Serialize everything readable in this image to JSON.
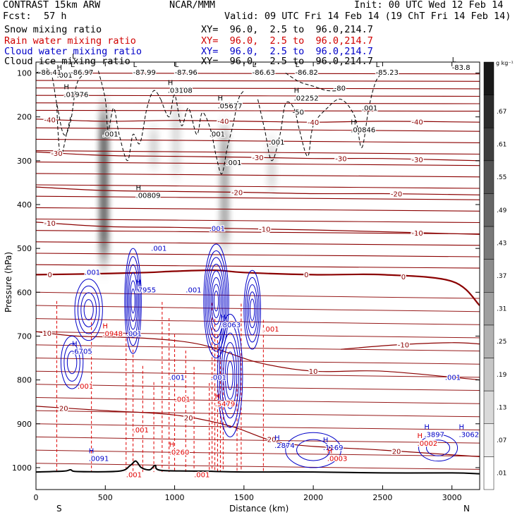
{
  "header": {
    "model": "CONTRAST 15km ARW",
    "org": "NCAR/MMM",
    "init": "Init: 00 UTC Wed 12 Feb 14",
    "fcst_label": "Fcst:",
    "fcst_value": "57 h",
    "valid": "Valid: 09 UTC Fri 14 Feb 14 (19 ChT Fri 14 Feb 14)"
  },
  "legend": [
    {
      "name": "Snow mixing ratio",
      "xy": "XY=  96.0,  2.5 to  96.0,214.7",
      "color": "#000000"
    },
    {
      "name": "Rain water mixing ratio",
      "xy": "XY=  96.0,  2.5 to  96.0,214.7",
      "color": "#d00000"
    },
    {
      "name": "Cloud water mixing ratio",
      "xy": "XY=  96.0,  2.5 to  96.0,214.7",
      "color": "#0000c8"
    },
    {
      "name": "Cloud ice mixing ratio",
      "xy": "XY=  96.0,  2.5 to  96.0,214.7",
      "color": "#000000"
    }
  ],
  "colors": {
    "temperature": "#8b0000",
    "cloud_water": "#0000c8",
    "rain": "#e00000",
    "ice": "#000000",
    "terrain": "#000000"
  },
  "chart_data": {
    "type": "heatmap",
    "xlabel": "Distance (km)",
    "ylabel": "Pressure (hPa)",
    "xlim": [
      0,
      3200
    ],
    "ylim": [
      1050,
      75
    ],
    "x_ticks": [
      0,
      500,
      1000,
      1500,
      2000,
      2500,
      3000
    ],
    "y_ticks": [
      100,
      200,
      300,
      400,
      500,
      600,
      700,
      800,
      900,
      1000
    ],
    "x_end_labels": {
      "left": "S",
      "right": "N"
    },
    "colorbar": {
      "unit": "g kg⁻¹",
      "ticks": [
        ".01",
        ".07",
        ".13",
        ".19",
        ".25",
        ".31",
        ".37",
        ".43",
        ".49",
        ".55",
        ".61",
        ".67"
      ]
    },
    "temperature_isotherms": [
      {
        "label": "-40",
        "x": [
          0,
          500,
          1000,
          1500,
          2000,
          2500,
          3200
        ],
        "p": [
          205,
          210,
          208,
          210,
          212,
          210,
          212
        ],
        "label_x": [
          100,
          1350,
          2000,
          2750
        ]
      },
      {
        "label": "-30",
        "x": [
          0,
          500,
          1000,
          1500,
          2000,
          2500,
          3200
        ],
        "p": [
          280,
          288,
          290,
          292,
          295,
          295,
          300
        ],
        "label_x": [
          150,
          1600,
          2200,
          2750
        ]
      },
      {
        "label": "-20",
        "x": [
          0,
          500,
          1000,
          1500,
          2000,
          2500,
          3200
        ],
        "p": [
          360,
          368,
          370,
          372,
          375,
          375,
          378
        ],
        "label_x": [
          1450,
          2600
        ]
      },
      {
        "label": "-10",
        "x": [
          0,
          500,
          1000,
          1500,
          2000,
          2500,
          3200
        ],
        "p": [
          440,
          450,
          452,
          455,
          458,
          462,
          468
        ],
        "label_x": [
          100,
          1650,
          2750
        ]
      },
      {
        "label": "0",
        "x": [
          0,
          400,
          800,
          1000,
          1300,
          1500,
          2000,
          2500,
          3000,
          3200
        ],
        "p": [
          560,
          558,
          555,
          552,
          550,
          555,
          560,
          560,
          575,
          630
        ],
        "label_x": [
          100,
          1950,
          2650
        ]
      },
      {
        "label": "-10",
        "x": [
          2200,
          2600,
          3000,
          3200
        ],
        "p": [
          730,
          720,
          715,
          718
        ],
        "label_x": [
          2650
        ]
      },
      {
        "label": "10",
        "x": [
          0,
          300,
          800,
          1200,
          1600,
          2000,
          2500,
          3200
        ],
        "p": [
          690,
          700,
          705,
          720,
          760,
          780,
          780,
          800
        ],
        "label_x": [
          80,
          2000
        ]
      },
      {
        "label": "20",
        "x": [
          0,
          500,
          1000,
          1400,
          1800,
          2500,
          3200
        ],
        "p": [
          860,
          870,
          880,
          905,
          945,
          960,
          975
        ],
        "label_x": [
          200,
          1100,
          1700,
          2600
        ]
      }
    ],
    "cloud_ice_labels": [
      {
        "kind": "L",
        "value": "",
        "x": 260,
        "p": 85
      },
      {
        "kind": "H",
        "value": ".001",
        "x": 150,
        "p": 110
      },
      {
        "kind": "L",
        "value": "-86.97",
        "x": 250,
        "p": 104
      },
      {
        "kind": "L",
        "value": "-87.99",
        "x": 700,
        "p": 104
      },
      {
        "kind": "L",
        "value": "-87.96",
        "x": 1000,
        "p": 104
      },
      {
        "kind": "L",
        "value": "-86.63",
        "x": 1560,
        "p": 104
      },
      {
        "kind": "L",
        "value": "-86.82",
        "x": 1870,
        "p": 104
      },
      {
        "kind": "L",
        "value": "-85.23",
        "x": 2450,
        "p": 104
      },
      {
        "kind": "L",
        "value": "-83.8",
        "x": 3000,
        "p": 93
      },
      {
        "kind": "",
        "value": "-86.41",
        "x": 20,
        "p": 104
      },
      {
        "kind": "H",
        "value": ".01976",
        "x": 200,
        "p": 155
      },
      {
        "kind": "H",
        "value": ".03108",
        "x": 950,
        "p": 145
      },
      {
        "kind": "H",
        "value": ".05677",
        "x": 1310,
        "p": 180
      },
      {
        "kind": "H",
        "value": ".02252",
        "x": 1860,
        "p": 163
      },
      {
        "kind": "H",
        "value": ".00846",
        "x": 2270,
        "p": 235
      },
      {
        "kind": "H",
        "value": ".00809",
        "x": 720,
        "p": 385
      },
      {
        "kind": "",
        "value": ".001",
        "x": 480,
        "p": 245
      },
      {
        "kind": "",
        "value": ".001",
        "x": 1250,
        "p": 245
      },
      {
        "kind": "",
        "value": ".001",
        "x": 1370,
        "p": 310
      },
      {
        "kind": "",
        "value": ".001",
        "x": 2350,
        "p": 185
      },
      {
        "kind": "",
        "value": ".001",
        "x": 1680,
        "p": 263
      },
      {
        "kind": "",
        "value": "-50",
        "x": 1850,
        "p": 195
      },
      {
        "kind": "",
        "value": "-80",
        "x": 2150,
        "p": 140
      }
    ],
    "cloud_water_labels": [
      {
        "kind": "H",
        "value": ".7955",
        "x": 720,
        "p": 600
      },
      {
        "kind": "H",
        "value": ".8063",
        "x": 1330,
        "p": 680
      },
      {
        "kind": "H",
        "value": ".6705",
        "x": 260,
        "p": 740
      },
      {
        "kind": "H",
        "value": ".2874",
        "x": 1720,
        "p": 955
      },
      {
        "kind": "H",
        "value": ".1169",
        "x": 2070,
        "p": 960
      },
      {
        "kind": "H",
        "value": ".3897",
        "x": 2800,
        "p": 930
      },
      {
        "kind": "H",
        "value": ".3062",
        "x": 3050,
        "p": 930
      },
      {
        "kind": "",
        "value": ".001",
        "x": 350,
        "p": 560
      },
      {
        "kind": "",
        "value": ".001",
        "x": 830,
        "p": 505
      },
      {
        "kind": "",
        "value": ".001",
        "x": 1250,
        "p": 460
      },
      {
        "kind": "",
        "value": ".001",
        "x": 1080,
        "p": 600
      },
      {
        "kind": "",
        "value": ".001",
        "x": 650,
        "p": 700
      },
      {
        "kind": "",
        "value": ".001",
        "x": 960,
        "p": 800
      },
      {
        "kind": "",
        "value": ".001",
        "x": 1260,
        "p": 800
      },
      {
        "kind": "",
        "value": ".001",
        "x": 2950,
        "p": 800
      },
      {
        "kind": "H",
        "value": ".0091",
        "x": 380,
        "p": 985
      }
    ],
    "rain_labels": [
      {
        "kind": "H",
        "value": ".0948",
        "x": 480,
        "p": 700
      },
      {
        "kind": "H",
        "value": ".5479",
        "x": 1290,
        "p": 860
      },
      {
        "kind": "H",
        "value": ".0260",
        "x": 960,
        "p": 970
      },
      {
        "kind": "H",
        "value": ".0002",
        "x": 2750,
        "p": 950
      },
      {
        "kind": "H",
        "value": ".0003",
        "x": 2100,
        "p": 985
      },
      {
        "kind": "",
        "value": ".001",
        "x": 300,
        "p": 820
      },
      {
        "kind": "",
        "value": ".001",
        "x": 700,
        "p": 920
      },
      {
        "kind": "",
        "value": ".001",
        "x": 1000,
        "p": 850
      },
      {
        "kind": "",
        "value": ".001",
        "x": 1140,
        "p": 1022
      },
      {
        "kind": "",
        "value": ".001",
        "x": 650,
        "p": 1022
      },
      {
        "kind": "",
        "value": ".001",
        "x": 1640,
        "p": 690
      }
    ],
    "ice_columns": [
      {
        "x": 490,
        "p_top": 150,
        "p_bottom": 560,
        "max": 0.55
      },
      {
        "x": 1360,
        "p_top": 200,
        "p_bottom": 520,
        "max": 0.3
      },
      {
        "x": 850,
        "p_top": 220,
        "p_bottom": 320,
        "max": 0.15
      },
      {
        "x": 1010,
        "p_top": 150,
        "p_bottom": 350,
        "max": 0.12
      },
      {
        "x": 1700,
        "p_top": 240,
        "p_bottom": 380,
        "max": 0.12
      }
    ],
    "cloud_water_cells": [
      {
        "x": 380,
        "p": 640,
        "rx": 100,
        "rp": 70,
        "rings": 4
      },
      {
        "x": 700,
        "p": 620,
        "rx": 60,
        "rp": 120,
        "rings": 6
      },
      {
        "x": 1300,
        "p": 620,
        "rx": 90,
        "rp": 130,
        "rings": 8
      },
      {
        "x": 1560,
        "p": 640,
        "rx": 60,
        "rp": 90,
        "rings": 5
      },
      {
        "x": 260,
        "p": 760,
        "rx": 80,
        "rp": 60,
        "rings": 3
      },
      {
        "x": 1400,
        "p": 790,
        "rx": 90,
        "rp": 140,
        "rings": 6
      },
      {
        "x": 2000,
        "p": 960,
        "rx": 200,
        "rp": 40,
        "rings": 2
      },
      {
        "x": 2900,
        "p": 955,
        "rx": 140,
        "rp": 30,
        "rings": 2
      }
    ],
    "rain_shafts_x": [
      150,
      400,
      650,
      700,
      770,
      850,
      910,
      960,
      1000,
      1080,
      1140,
      1250,
      1270,
      1290,
      1310,
      1330,
      1350,
      1450,
      1480,
      1640
    ],
    "terrain_hpa": [
      [
        0,
        1010
      ],
      [
        200,
        1008
      ],
      [
        250,
        1005
      ],
      [
        300,
        1009
      ],
      [
        600,
        1008
      ],
      [
        680,
        995
      ],
      [
        720,
        985
      ],
      [
        760,
        1000
      ],
      [
        820,
        1005
      ],
      [
        860,
        995
      ],
      [
        900,
        1006
      ],
      [
        1200,
        1008
      ],
      [
        1500,
        1010
      ],
      [
        2000,
        1010
      ],
      [
        2500,
        1012
      ],
      [
        3000,
        1012
      ],
      [
        3200,
        1014
      ]
    ],
    "ice_contours": [
      [
        [
          0,
          100
        ],
        [
          100,
          95
        ],
        [
          150,
          170
        ],
        [
          200,
          240
        ],
        [
          250,
          210
        ],
        [
          300,
          120
        ],
        [
          400,
          95
        ]
      ],
      [
        [
          150,
          170
        ],
        [
          160,
          240
        ],
        [
          180,
          290
        ],
        [
          220,
          240
        ],
        [
          250,
          200
        ]
      ],
      [
        [
          450,
          95
        ],
        [
          500,
          160
        ],
        [
          520,
          230
        ],
        [
          560,
          180
        ],
        [
          600,
          240
        ],
        [
          660,
          300
        ],
        [
          700,
          240
        ],
        [
          750,
          260
        ],
        [
          800,
          180
        ],
        [
          850,
          140
        ],
        [
          900,
          160
        ]
      ],
      [
        [
          900,
          160
        ],
        [
          960,
          200
        ],
        [
          1000,
          150
        ],
        [
          1050,
          220
        ],
        [
          1100,
          180
        ],
        [
          1160,
          240
        ],
        [
          1200,
          190
        ],
        [
          1260,
          230
        ],
        [
          1300,
          290
        ],
        [
          1340,
          330
        ],
        [
          1380,
          270
        ],
        [
          1420,
          220
        ],
        [
          1460,
          160
        ],
        [
          1500,
          140
        ]
      ],
      [
        [
          1600,
          160
        ],
        [
          1650,
          230
        ],
        [
          1700,
          300
        ],
        [
          1760,
          240
        ],
        [
          1800,
          170
        ],
        [
          1860,
          180
        ],
        [
          1900,
          230
        ],
        [
          1960,
          290
        ],
        [
          2000,
          220
        ],
        [
          2100,
          180
        ],
        [
          2200,
          160
        ],
        [
          2300,
          200
        ],
        [
          2350,
          270
        ],
        [
          2400,
          180
        ],
        [
          2450,
          120
        ],
        [
          2500,
          100
        ]
      ],
      [
        [
          1800,
          100
        ],
        [
          1900,
          120
        ],
        [
          2000,
          130
        ],
        [
          2100,
          140
        ],
        [
          2200,
          140
        ]
      ]
    ]
  }
}
